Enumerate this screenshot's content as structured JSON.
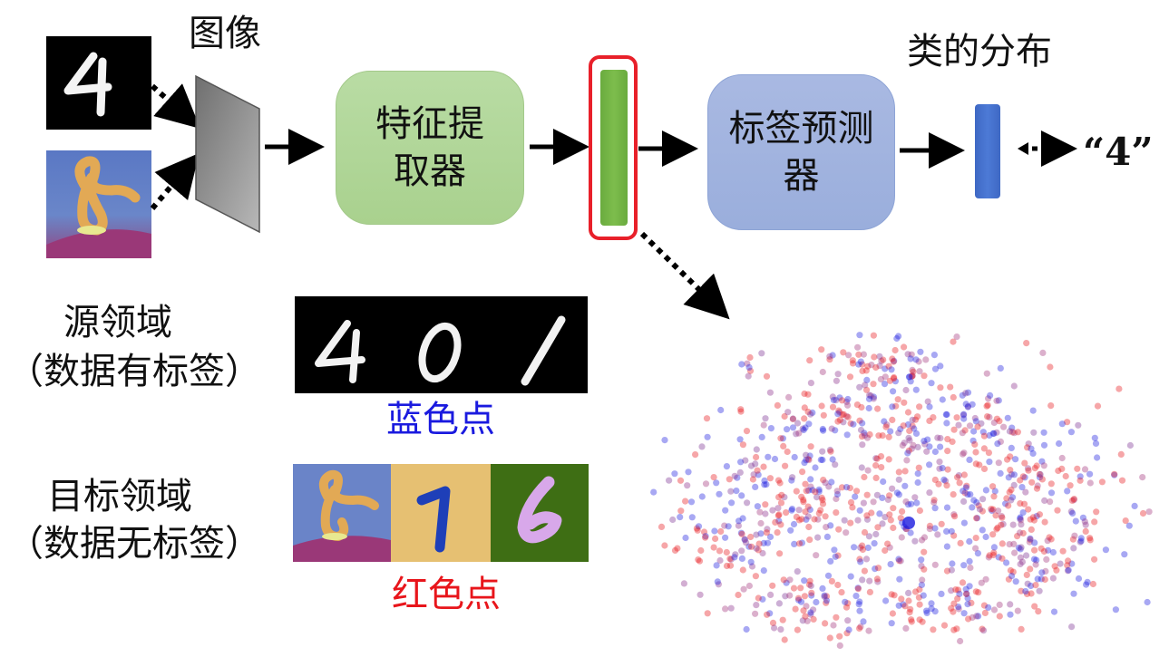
{
  "labels": {
    "image": "图像",
    "class_distribution": "类的分布",
    "feature_extractor_line1": "特征提",
    "feature_extractor_line2": "取器",
    "label_predictor_line1": "标签预测",
    "label_predictor_line2": "器",
    "output": "“4”",
    "source_domain_line1": "源领域",
    "source_domain_line2": "（数据有标签）",
    "target_domain_line1": "目标领域",
    "target_domain_line2": "（数据无标签）",
    "blue_points": "蓝色点",
    "red_points": "红色点"
  },
  "source_digits": [
    "4",
    "0",
    "1"
  ],
  "colors": {
    "blue_points": "#1a1adf",
    "red_points": "#e8151b",
    "extractor_fill": "#a9d18e",
    "predictor_fill": "#9aaedc",
    "highlight": "#e8202a"
  }
}
